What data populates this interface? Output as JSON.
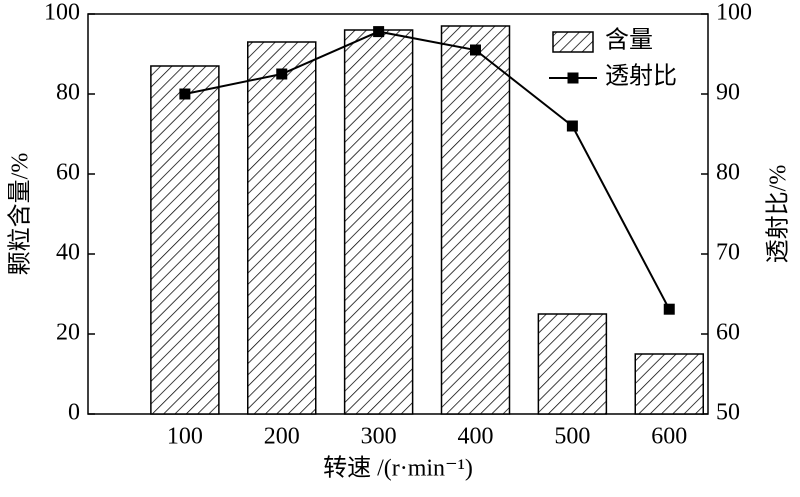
{
  "chart_data": {
    "type": "bar",
    "x_label": "转速 /(r·min⁻¹)",
    "y_label": "颗粒含量/%",
    "y2_label": "透射比/%",
    "x": [
      100,
      200,
      300,
      400,
      500,
      600
    ],
    "series": [
      {
        "name": "含量",
        "type": "bar",
        "color": "#000000",
        "values": [
          87,
          93,
          96,
          97,
          25,
          15
        ]
      },
      {
        "name": "透射比",
        "type": "line",
        "axis": "y2",
        "color": "#000000",
        "values": [
          90,
          92.5,
          97.8,
          95.5,
          86,
          63.1
        ]
      }
    ],
    "xlim": [
      0,
      640
    ],
    "xticks": [
      100,
      200,
      300,
      400,
      500,
      600
    ],
    "ylim": [
      0,
      100
    ],
    "yticks": [
      0,
      20,
      40,
      60,
      80,
      100
    ],
    "y2lim": [
      50,
      100
    ],
    "y2ticks": [
      50,
      60,
      70,
      80,
      90,
      100
    ],
    "legend": "upper right"
  }
}
